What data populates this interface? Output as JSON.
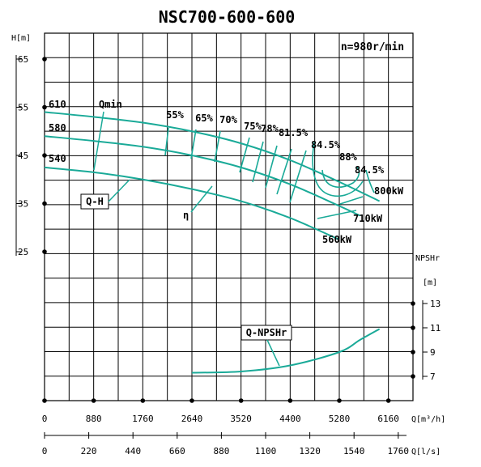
{
  "chart_data": {
    "type": "line",
    "title": "NSC700-600-600",
    "speed_label": "n=980r/min",
    "x_flow_m3h": {
      "label": "Q[m³/h]",
      "ticks": [
        0,
        880,
        1760,
        2640,
        3520,
        4400,
        5280,
        6160
      ],
      "range": [
        0,
        6600
      ]
    },
    "x_flow_ls": {
      "label": "Q[l/s]",
      "ticks": [
        0,
        220,
        440,
        660,
        880,
        1100,
        1320,
        1540,
        1760
      ]
    },
    "y_head": {
      "label": "H[m]",
      "ticks": [
        25,
        35,
        45,
        55,
        65
      ]
    },
    "y_npsh": {
      "label": "NPSHr [m]",
      "ticks": [
        7,
        9,
        11,
        13
      ]
    },
    "head_curves": [
      {
        "name": "610",
        "points": [
          [
            0,
            54
          ],
          [
            880,
            53
          ],
          [
            1760,
            51.8
          ],
          [
            2640,
            50
          ],
          [
            3520,
            47.5
          ],
          [
            4400,
            44
          ],
          [
            5280,
            39.5
          ],
          [
            6000,
            35.5
          ]
        ]
      },
      {
        "name": "580",
        "points": [
          [
            0,
            49
          ],
          [
            880,
            48
          ],
          [
            1760,
            46.8
          ],
          [
            2640,
            45
          ],
          [
            3520,
            42.5
          ],
          [
            4400,
            39
          ],
          [
            5280,
            34.5
          ],
          [
            5650,
            32.5
          ]
        ]
      },
      {
        "name": "540",
        "points": [
          [
            0,
            42.5
          ],
          [
            880,
            41.5
          ],
          [
            1760,
            40
          ],
          [
            2640,
            38
          ],
          [
            3520,
            35.5
          ],
          [
            4400,
            32
          ],
          [
            5280,
            27.5
          ]
        ]
      }
    ],
    "efficiency_labels": [
      "55%",
      "65%",
      "70%",
      "75%",
      "78%",
      "81.5%",
      "84.5%",
      "88%",
      "84.5%"
    ],
    "power_labels": [
      "800kW",
      "710kW",
      "560kW"
    ],
    "npsh_curve": {
      "name": "Q-NPSHr",
      "points": [
        [
          2640,
          7.3
        ],
        [
          3520,
          7.4
        ],
        [
          4400,
          7.9
        ],
        [
          5280,
          9
        ],
        [
          5650,
          10
        ],
        [
          6000,
          10.9
        ]
      ]
    },
    "annotations": [
      "Qmin",
      "Q-H",
      "η",
      "Q-NPSHr"
    ]
  }
}
